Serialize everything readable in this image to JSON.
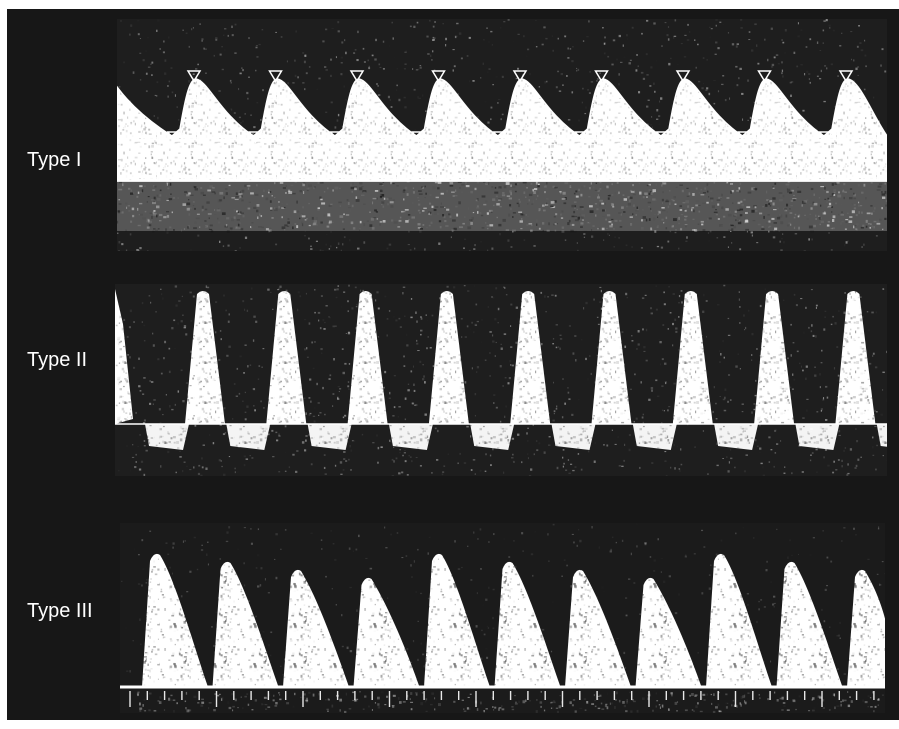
{
  "figure": {
    "panels": [
      {
        "id": "type-1",
        "label": "Type I",
        "waveform": "low-resistance continuous flow above baseline with caliper markers"
      },
      {
        "id": "type-2",
        "label": "Type II",
        "waveform": "high-resistance triphasic: sharp peaks above baseline, reversed flow below"
      },
      {
        "id": "type-3",
        "label": "Type III",
        "waveform": "sawtooth sharp peaks with slow decay, baseline with tick marks"
      }
    ],
    "colors": {
      "background": "#171717",
      "spectrum": "#ffffff",
      "label_text": "#ffffff",
      "baseline": "#ffffff",
      "marker": "#ffffff"
    }
  }
}
